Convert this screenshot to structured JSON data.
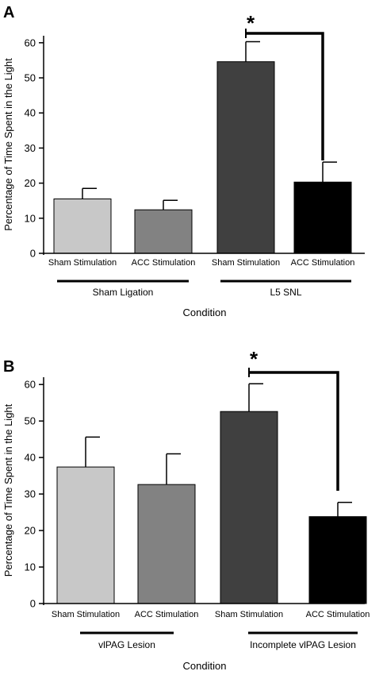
{
  "chart_data": [
    {
      "panel": "A",
      "type": "bar",
      "categories": [
        "Sham Stimulation",
        "ACC Stimulation",
        "Sham Stimulation",
        "ACC Stimulation"
      ],
      "values": [
        15.5,
        12.4,
        54.6,
        20.3
      ],
      "errors": [
        3.0,
        2.7,
        5.7,
        5.7
      ],
      "colors": [
        "#c8c8c8",
        "#828282",
        "#404040",
        "#000000"
      ],
      "groups": [
        {
          "label": "Sham Ligation",
          "span": [
            0,
            1
          ]
        },
        {
          "label": "L5 SNL",
          "span": [
            2,
            3
          ]
        }
      ],
      "xlabel": "Condition",
      "ylabel": "Percentage of Time Spent in the Light",
      "ylim": [
        0,
        62
      ],
      "yticks": [
        0,
        10,
        20,
        30,
        40,
        50,
        60
      ],
      "significance": {
        "from": 2,
        "to": 3,
        "label": "*"
      }
    },
    {
      "panel": "B",
      "type": "bar",
      "categories": [
        "Sham Stimulation",
        "ACC Stimulation",
        "Sham Stimulation",
        "ACC Stimulation"
      ],
      "values": [
        37.4,
        32.6,
        52.6,
        23.8
      ],
      "errors": [
        8.2,
        8.4,
        7.6,
        3.9
      ],
      "colors": [
        "#c8c8c8",
        "#828282",
        "#404040",
        "#000000"
      ],
      "groups": [
        {
          "label": "vlPAG Lesion",
          "span": [
            0,
            1
          ]
        },
        {
          "label": "Incomplete vlPAG Lesion",
          "span": [
            2,
            3
          ]
        }
      ],
      "xlabel": "Condition",
      "ylabel": "Percentage of Time Spent in the Light",
      "ylim": [
        0,
        62
      ],
      "yticks": [
        0,
        10,
        20,
        30,
        40,
        50,
        60
      ],
      "significance": {
        "from": 2,
        "to": 3,
        "label": "*"
      }
    }
  ]
}
